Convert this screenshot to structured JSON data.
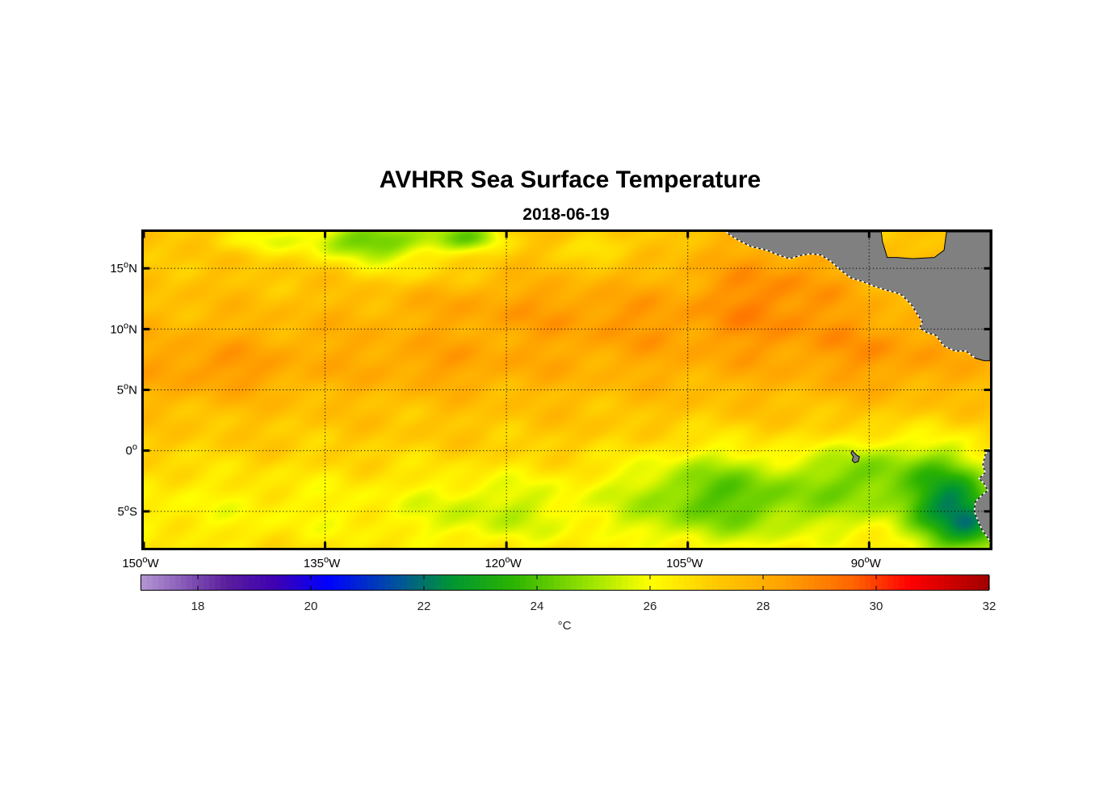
{
  "figure": {
    "title": "AVHRR Sea Surface Temperature",
    "subtitle": "2018-06-19"
  },
  "chart_data": {
    "type": "heatmap",
    "title": "AVHRR Sea Surface Temperature",
    "subtitle": "2018-06-19",
    "lon_range": [
      -150,
      -80
    ],
    "lat_range": [
      -8,
      18
    ],
    "x_ticks": [
      {
        "value": -150,
        "deg": "150",
        "o": "o",
        "hem": "W"
      },
      {
        "value": -135,
        "deg": "135",
        "o": "o",
        "hem": "W"
      },
      {
        "value": -120,
        "deg": "120",
        "o": "o",
        "hem": "W"
      },
      {
        "value": -105,
        "deg": "105",
        "o": "o",
        "hem": "W"
      },
      {
        "value": -90,
        "deg": "90",
        "o": "o",
        "hem": "W"
      }
    ],
    "y_ticks": [
      {
        "value": 15,
        "deg": "15",
        "o": "o",
        "hem": "N"
      },
      {
        "value": 10,
        "deg": "10",
        "o": "o",
        "hem": "N"
      },
      {
        "value": 5,
        "deg": "5",
        "o": "o",
        "hem": "N"
      },
      {
        "value": 0,
        "deg": "0",
        "o": "o",
        "hem": ""
      },
      {
        "value": -5,
        "deg": "5",
        "o": "o",
        "hem": "S"
      }
    ],
    "grid": true,
    "colorbar": {
      "min": 17,
      "max": 32,
      "ticks": [
        18,
        20,
        22,
        24,
        26,
        28,
        30,
        32
      ],
      "tick_labels": [
        "18",
        "20",
        "22",
        "24",
        "26",
        "28",
        "30",
        "32"
      ],
      "label": "°C",
      "n_steps": 150,
      "colormap": [
        {
          "v": 17.0,
          "c": "#b496d2"
        },
        {
          "v": 18.5,
          "c": "#5a1e9c"
        },
        {
          "v": 19.4,
          "c": "#3c00b4"
        },
        {
          "v": 20.3,
          "c": "#0000ff"
        },
        {
          "v": 21.5,
          "c": "#0050a0"
        },
        {
          "v": 22.5,
          "c": "#009632"
        },
        {
          "v": 23.6,
          "c": "#2db400"
        },
        {
          "v": 25.0,
          "c": "#a0e600"
        },
        {
          "v": 26.0,
          "c": "#ffff00"
        },
        {
          "v": 27.2,
          "c": "#ffc800"
        },
        {
          "v": 28.4,
          "c": "#ffa000"
        },
        {
          "v": 29.6,
          "c": "#ff6400"
        },
        {
          "v": 30.6,
          "c": "#ff0000"
        },
        {
          "v": 32.0,
          "c": "#a00000"
        }
      ]
    },
    "sst_blobs": [
      {
        "lon": -144,
        "lat": 6.5,
        "rlon": 6,
        "rlat": 2.2,
        "delta": 0.7
      },
      {
        "lon": -125,
        "lat": 7,
        "rlon": 7,
        "rlat": 2,
        "delta": 0.4
      },
      {
        "lon": -120,
        "lat": 12,
        "rlon": 9,
        "rlat": 2.2,
        "delta": 0.7
      },
      {
        "lon": -110,
        "lat": 11,
        "rlon": 7,
        "rlat": 3,
        "delta": 0.6
      },
      {
        "lon": -98,
        "lat": 13,
        "rlon": 7,
        "rlat": 4.5,
        "delta": 1.4
      },
      {
        "lon": -89,
        "lat": 8,
        "rlon": 5,
        "rlat": 3,
        "delta": 0.6
      },
      {
        "lon": -131,
        "lat": 17.3,
        "rlon": 6,
        "rlat": 1.8,
        "delta": -3.0
      },
      {
        "lon": -123,
        "lat": 17.6,
        "rlon": 3,
        "rlat": 1.2,
        "delta": -2.2
      },
      {
        "lon": -141,
        "lat": 17.3,
        "rlon": 3.5,
        "rlat": 1.2,
        "delta": -1.0
      },
      {
        "lon": -112,
        "lat": 16.8,
        "rlon": 2.5,
        "rlat": 1.2,
        "delta": -1.0
      },
      {
        "lon": -128,
        "lat": 14.5,
        "rlon": 5,
        "rlat": 1.2,
        "delta": -0.5
      },
      {
        "lon": -121,
        "lat": -5,
        "rlon": 6,
        "rlat": 3,
        "delta": -0.8
      },
      {
        "lon": -103,
        "lat": -3.5,
        "rlon": 7,
        "rlat": 4,
        "delta": -2.0
      },
      {
        "lon": -95,
        "lat": -3.5,
        "rlon": 6,
        "rlat": 3.5,
        "delta": -0.8
      },
      {
        "lon": -90,
        "lat": -1.5,
        "rlon": 4,
        "rlat": 3,
        "delta": -1.8
      },
      {
        "lon": -83.5,
        "lat": -4,
        "rlon": 3.5,
        "rlat": 4.5,
        "delta": -3.5
      },
      {
        "lon": -81,
        "lat": -6,
        "rlon": 2.5,
        "rlat": 2.5,
        "delta": -2.0
      }
    ],
    "land": {
      "fill": "#808080",
      "stroke": "#000000",
      "coast_highlight": "#ffffff",
      "central_america": [
        [
          -101.8,
          18
        ],
        [
          -101.6,
          17.8
        ],
        [
          -100.8,
          17.3
        ],
        [
          -99.8,
          16.8
        ],
        [
          -98.5,
          16.5
        ],
        [
          -97.5,
          16.1
        ],
        [
          -96.6,
          15.8
        ],
        [
          -95.5,
          16.1
        ],
        [
          -94.8,
          16.2
        ],
        [
          -94.0,
          16.1
        ],
        [
          -93.2,
          15.6
        ],
        [
          -92.3,
          14.8
        ],
        [
          -91.5,
          14.2
        ],
        [
          -90.5,
          13.9
        ],
        [
          -89.8,
          13.6
        ],
        [
          -88.6,
          13.2
        ],
        [
          -87.8,
          13.0
        ],
        [
          -87.3,
          12.8
        ],
        [
          -86.5,
          12.0
        ],
        [
          -86.0,
          11.2
        ],
        [
          -85.6,
          10.6
        ],
        [
          -85.8,
          10.1
        ],
        [
          -85.2,
          9.7
        ],
        [
          -84.5,
          9.5
        ],
        [
          -83.8,
          8.6
        ],
        [
          -82.9,
          8.2
        ],
        [
          -82.0,
          8.2
        ],
        [
          -81.2,
          7.6
        ],
        [
          -80.5,
          7.4
        ],
        [
          -80.0,
          7.4
        ],
        [
          -80.0,
          18
        ],
        [
          -82.5,
          18
        ],
        [
          -83.6,
          18
        ],
        [
          -83.8,
          16.5
        ],
        [
          -84.6,
          15.9
        ],
        [
          -86.4,
          15.8
        ],
        [
          -87.7,
          15.9
        ],
        [
          -88.5,
          15.9
        ],
        [
          -88.9,
          17.2
        ],
        [
          -89.0,
          18
        ]
      ],
      "south_america": [
        [
          -80.0,
          0.2
        ],
        [
          -80.4,
          -0.3
        ],
        [
          -80.6,
          -1.2
        ],
        [
          -80.4,
          -1.8
        ],
        [
          -80.9,
          -2.3
        ],
        [
          -80.5,
          -2.7
        ],
        [
          -80.2,
          -3.3
        ],
        [
          -80.6,
          -3.6
        ],
        [
          -81.2,
          -4.2
        ],
        [
          -81.3,
          -5.0
        ],
        [
          -80.9,
          -6.0
        ],
        [
          -80.6,
          -6.6
        ],
        [
          -80.1,
          -7.3
        ],
        [
          -79.8,
          -8
        ],
        [
          -80,
          -8
        ]
      ],
      "galapagos": [
        [
          -91.4,
          0.0
        ],
        [
          -91.0,
          -0.4
        ],
        [
          -90.8,
          -0.5
        ],
        [
          -90.9,
          -0.9
        ],
        [
          -91.2,
          -1.0
        ],
        [
          -91.4,
          -0.8
        ],
        [
          -91.3,
          -0.5
        ],
        [
          -91.5,
          -0.2
        ]
      ]
    }
  }
}
